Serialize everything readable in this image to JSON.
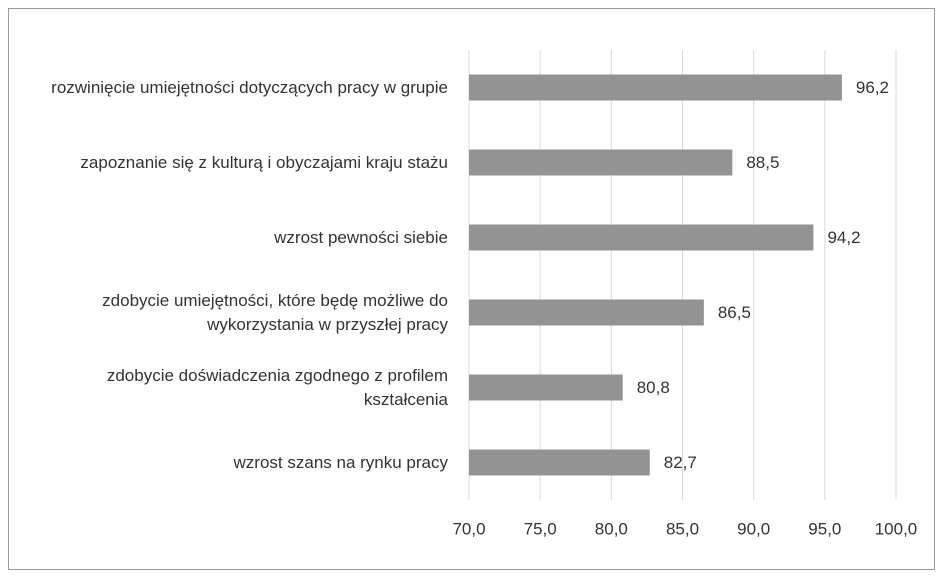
{
  "chart_data": {
    "type": "hbar",
    "categories": [
      "rozwinięcie umiejętności dotyczących pracy w grupie",
      "zapoznanie się z kulturą i obyczajami kraju stażu",
      "wzrost pewności siebie",
      "zdobycie umiejętności, które będę możliwe do wykorzystania w przyszłej pracy",
      "zdobycie doświadczenia zgodnego z profilem kształcenia",
      "wzrost szans na rynku pracy"
    ],
    "values": [
      96.2,
      88.5,
      94.2,
      86.5,
      80.8,
      82.7
    ],
    "value_labels": [
      "96,2",
      "88,5",
      "94,2",
      "86,5",
      "80,8",
      "82,7"
    ],
    "color": "#939393",
    "xlim": [
      70,
      100
    ],
    "xticks": [
      {
        "value": 70,
        "label": "70,0"
      },
      {
        "value": 75,
        "label": "75,0"
      },
      {
        "value": 80,
        "label": "80,0"
      },
      {
        "value": 85,
        "label": "85,0"
      },
      {
        "value": 90,
        "label": "90,0"
      },
      {
        "value": 95,
        "label": "95,0"
      },
      {
        "value": 100,
        "label": "100,0"
      }
    ],
    "grid": true
  }
}
